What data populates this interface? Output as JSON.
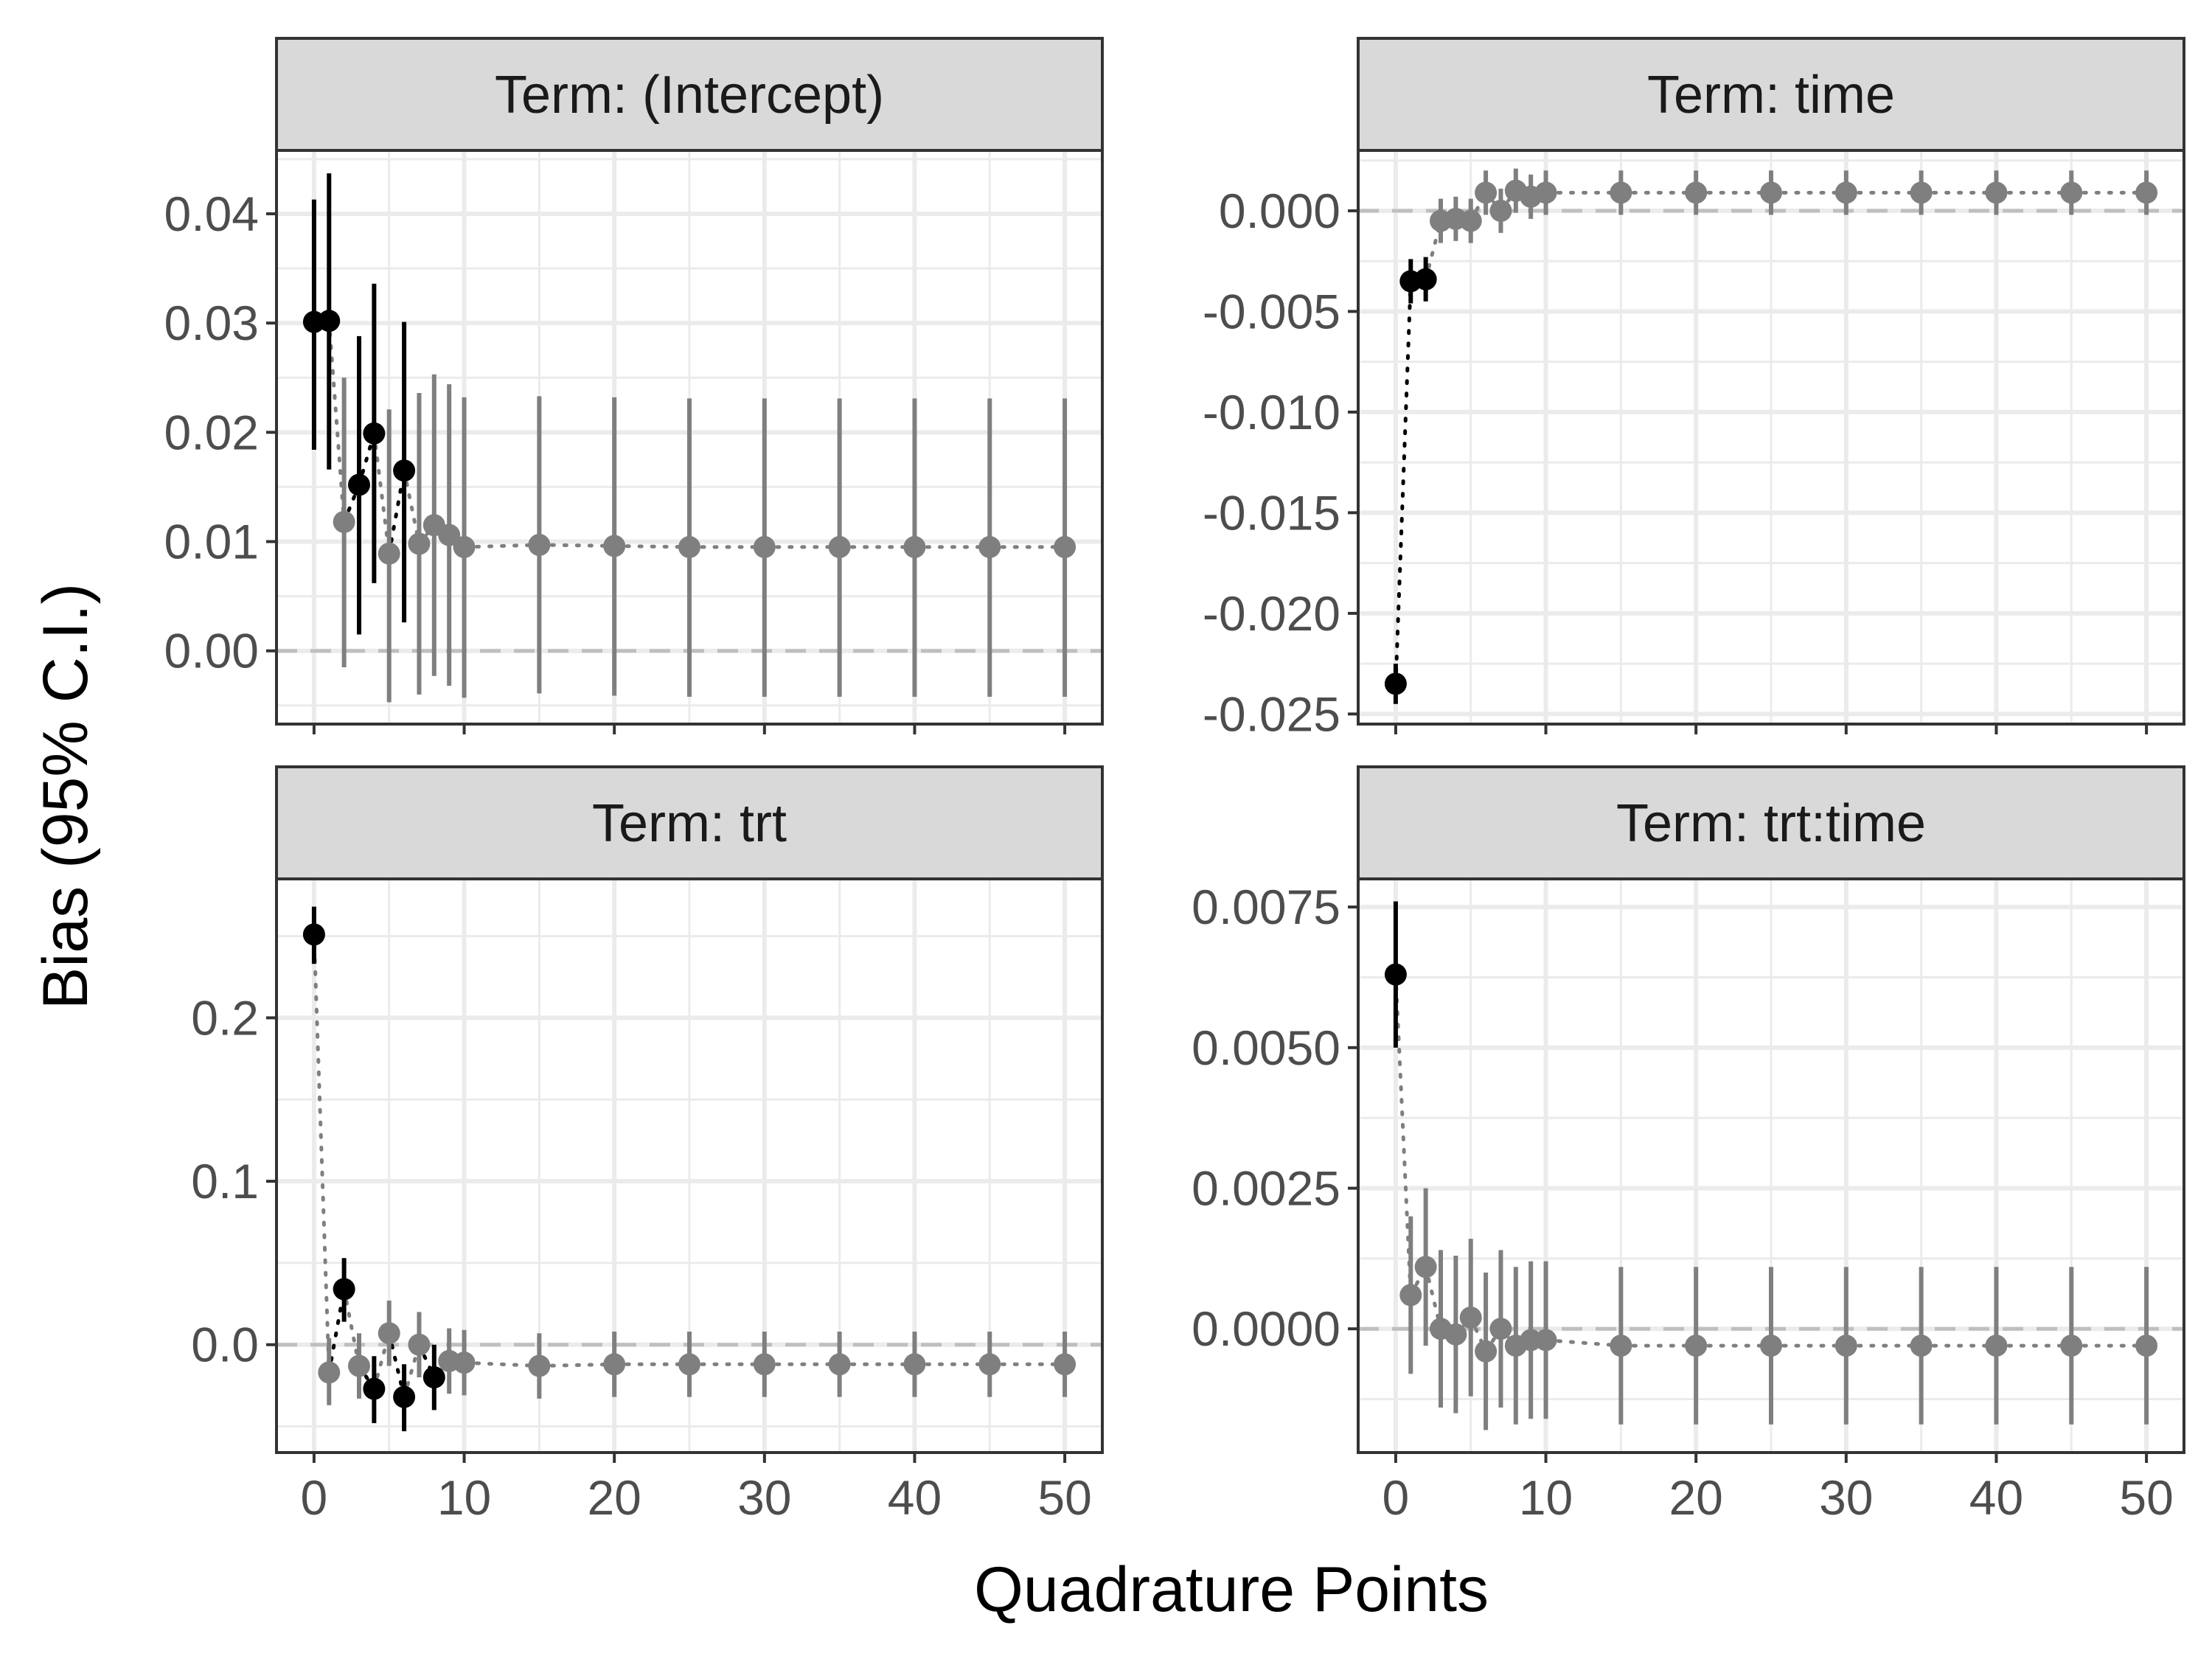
{
  "figure": {
    "xlabel": "Quadrature Points",
    "ylabel": "Bias (95% C.I.)"
  },
  "colors": {
    "significant": "#000000",
    "not_significant": "#7f7f7f",
    "panel_background": "#ffffff",
    "grid": "#ebebeb",
    "strip_background": "#d9d9d9",
    "zero_line": "#bfbfbf"
  },
  "chart_data": [
    {
      "type": "scatter",
      "title": "Term: (Intercept)",
      "x_ticks": [
        "0",
        "10",
        "20",
        "30",
        "40",
        "50"
      ],
      "y_ticks": [
        "0.00",
        "0.01",
        "0.02",
        "0.03",
        "0.04"
      ],
      "y_tick_values": [
        0,
        0.01,
        0.02,
        0.03,
        0.04
      ],
      "xlim": [
        -2.5,
        52.5
      ],
      "ylim": [
        -0.0067,
        0.0458
      ],
      "grid": true,
      "reference_line": 0,
      "points": [
        {
          "x": 0,
          "y": 0.0301,
          "lo": 0.0184,
          "hi": 0.0413,
          "sig": true
        },
        {
          "x": 1,
          "y": 0.0302,
          "lo": 0.0166,
          "hi": 0.0437,
          "sig": true
        },
        {
          "x": 2,
          "y": 0.0118,
          "lo": -0.0015,
          "hi": 0.025,
          "sig": false
        },
        {
          "x": 3,
          "y": 0.0152,
          "lo": 0.0015,
          "hi": 0.0288,
          "sig": true
        },
        {
          "x": 4,
          "y": 0.0199,
          "lo": 0.0062,
          "hi": 0.0336,
          "sig": true
        },
        {
          "x": 5,
          "y": 0.0089,
          "lo": -0.0047,
          "hi": 0.0221,
          "sig": false
        },
        {
          "x": 6,
          "y": 0.0165,
          "lo": 0.0026,
          "hi": 0.0301,
          "sig": true
        },
        {
          "x": 7,
          "y": 0.0098,
          "lo": -0.004,
          "hi": 0.0236,
          "sig": false
        },
        {
          "x": 8,
          "y": 0.0115,
          "lo": -0.0023,
          "hi": 0.0253,
          "sig": false
        },
        {
          "x": 9,
          "y": 0.0106,
          "lo": -0.0032,
          "hi": 0.0244,
          "sig": false
        },
        {
          "x": 10,
          "y": 0.0095,
          "lo": -0.0043,
          "hi": 0.0232,
          "sig": false
        },
        {
          "x": 15,
          "y": 0.0097,
          "lo": -0.0039,
          "hi": 0.0233,
          "sig": false
        },
        {
          "x": 20,
          "y": 0.0096,
          "lo": -0.0041,
          "hi": 0.0232,
          "sig": false
        },
        {
          "x": 25,
          "y": 0.0095,
          "lo": -0.0042,
          "hi": 0.0231,
          "sig": false
        },
        {
          "x": 30,
          "y": 0.0095,
          "lo": -0.0042,
          "hi": 0.0231,
          "sig": false
        },
        {
          "x": 35,
          "y": 0.0095,
          "lo": -0.0042,
          "hi": 0.0231,
          "sig": false
        },
        {
          "x": 40,
          "y": 0.0095,
          "lo": -0.0042,
          "hi": 0.0231,
          "sig": false
        },
        {
          "x": 45,
          "y": 0.0095,
          "lo": -0.0042,
          "hi": 0.0231,
          "sig": false
        },
        {
          "x": 50,
          "y": 0.0095,
          "lo": -0.0042,
          "hi": 0.0231,
          "sig": false
        }
      ]
    },
    {
      "type": "scatter",
      "title": "Term: time",
      "x_ticks": [
        "0",
        "10",
        "20",
        "30",
        "40",
        "50"
      ],
      "y_ticks": [
        "0.000",
        "-0.005",
        "-0.010",
        "-0.015",
        "-0.020",
        "-0.025"
      ],
      "y_tick_values": [
        0,
        -0.005,
        -0.01,
        -0.015,
        -0.02,
        -0.025
      ],
      "xlim": [
        -2.5,
        52.5
      ],
      "ylim": [
        -0.0255,
        0.003
      ],
      "grid": true,
      "reference_line": 0,
      "points": [
        {
          "x": 0,
          "y": -0.0235,
          "lo": -0.0245,
          "hi": -0.0225,
          "sig": true
        },
        {
          "x": 1,
          "y": -0.0035,
          "lo": -0.0046,
          "hi": -0.0024,
          "sig": true
        },
        {
          "x": 2,
          "y": -0.0034,
          "lo": -0.0045,
          "hi": -0.0023,
          "sig": true
        },
        {
          "x": 3,
          "y": -0.0005,
          "lo": -0.0016,
          "hi": 0.0006,
          "sig": false
        },
        {
          "x": 4,
          "y": -0.0004,
          "lo": -0.0015,
          "hi": 0.0007,
          "sig": false
        },
        {
          "x": 5,
          "y": -0.0005,
          "lo": -0.0016,
          "hi": 0.0006,
          "sig": false
        },
        {
          "x": 6,
          "y": 0.0009,
          "lo": -0.0002,
          "hi": 0.002,
          "sig": false
        },
        {
          "x": 7,
          "y": 0.0,
          "lo": -0.0011,
          "hi": 0.0011,
          "sig": false
        },
        {
          "x": 8,
          "y": 0.001,
          "lo": -0.0001,
          "hi": 0.0021,
          "sig": false
        },
        {
          "x": 9,
          "y": 0.0007,
          "lo": -0.0004,
          "hi": 0.0018,
          "sig": false
        },
        {
          "x": 10,
          "y": 0.0009,
          "lo": -0.0002,
          "hi": 0.002,
          "sig": false
        },
        {
          "x": 15,
          "y": 0.0009,
          "lo": -0.0002,
          "hi": 0.002,
          "sig": false
        },
        {
          "x": 20,
          "y": 0.0009,
          "lo": -0.0002,
          "hi": 0.002,
          "sig": false
        },
        {
          "x": 25,
          "y": 0.0009,
          "lo": -0.0002,
          "hi": 0.002,
          "sig": false
        },
        {
          "x": 30,
          "y": 0.0009,
          "lo": -0.0002,
          "hi": 0.002,
          "sig": false
        },
        {
          "x": 35,
          "y": 0.0009,
          "lo": -0.0002,
          "hi": 0.002,
          "sig": false
        },
        {
          "x": 40,
          "y": 0.0009,
          "lo": -0.0002,
          "hi": 0.002,
          "sig": false
        },
        {
          "x": 45,
          "y": 0.0009,
          "lo": -0.0002,
          "hi": 0.002,
          "sig": false
        },
        {
          "x": 50,
          "y": 0.0009,
          "lo": -0.0002,
          "hi": 0.002,
          "sig": false
        }
      ]
    },
    {
      "type": "scatter",
      "title": "Term: trt",
      "x_ticks": [
        "0",
        "10",
        "20",
        "30",
        "40",
        "50"
      ],
      "y_ticks": [
        "0.0",
        "0.1",
        "0.2"
      ],
      "y_tick_values": [
        0,
        0.1,
        0.2
      ],
      "xlim": [
        -2.5,
        52.5
      ],
      "ylim": [
        -0.066,
        0.285
      ],
      "grid": true,
      "reference_line": 0,
      "points": [
        {
          "x": 0,
          "y": 0.251,
          "lo": 0.233,
          "hi": 0.268,
          "sig": true
        },
        {
          "x": 1,
          "y": -0.017,
          "lo": -0.037,
          "hi": 0.004,
          "sig": false
        },
        {
          "x": 2,
          "y": 0.034,
          "lo": 0.014,
          "hi": 0.053,
          "sig": true
        },
        {
          "x": 3,
          "y": -0.013,
          "lo": -0.033,
          "hi": 0.007,
          "sig": false
        },
        {
          "x": 4,
          "y": -0.027,
          "lo": -0.048,
          "hi": -0.007,
          "sig": true
        },
        {
          "x": 5,
          "y": 0.007,
          "lo": -0.013,
          "hi": 0.027,
          "sig": false
        },
        {
          "x": 6,
          "y": -0.032,
          "lo": -0.053,
          "hi": -0.012,
          "sig": true
        },
        {
          "x": 7,
          "y": 0.0,
          "lo": -0.02,
          "hi": 0.02,
          "sig": false
        },
        {
          "x": 8,
          "y": -0.02,
          "lo": -0.04,
          "hi": 0.0,
          "sig": true
        },
        {
          "x": 9,
          "y": -0.01,
          "lo": -0.03,
          "hi": 0.01,
          "sig": false
        },
        {
          "x": 10,
          "y": -0.011,
          "lo": -0.031,
          "hi": 0.009,
          "sig": false
        },
        {
          "x": 15,
          "y": -0.013,
          "lo": -0.033,
          "hi": 0.007,
          "sig": false
        },
        {
          "x": 20,
          "y": -0.012,
          "lo": -0.032,
          "hi": 0.008,
          "sig": false
        },
        {
          "x": 25,
          "y": -0.012,
          "lo": -0.032,
          "hi": 0.008,
          "sig": false
        },
        {
          "x": 30,
          "y": -0.012,
          "lo": -0.032,
          "hi": 0.008,
          "sig": false
        },
        {
          "x": 35,
          "y": -0.012,
          "lo": -0.032,
          "hi": 0.008,
          "sig": false
        },
        {
          "x": 40,
          "y": -0.012,
          "lo": -0.032,
          "hi": 0.008,
          "sig": false
        },
        {
          "x": 45,
          "y": -0.012,
          "lo": -0.032,
          "hi": 0.008,
          "sig": false
        },
        {
          "x": 50,
          "y": -0.012,
          "lo": -0.032,
          "hi": 0.008,
          "sig": false
        }
      ]
    },
    {
      "type": "scatter",
      "title": "Term: trt:time",
      "x_ticks": [
        "0",
        "10",
        "20",
        "30",
        "40",
        "50"
      ],
      "y_ticks": [
        "0.0000",
        "0.0025",
        "0.0050",
        "0.0075"
      ],
      "y_tick_values": [
        0,
        0.0025,
        0.005,
        0.0075
      ],
      "xlim": [
        -2.5,
        52.5
      ],
      "ylim": [
        -0.0022,
        0.008
      ],
      "grid": true,
      "reference_line": 0,
      "points": [
        {
          "x": 0,
          "y": 0.0063,
          "lo": 0.005,
          "hi": 0.0076,
          "sig": true
        },
        {
          "x": 1,
          "y": 0.0006,
          "lo": -0.0008,
          "hi": 0.002,
          "sig": false
        },
        {
          "x": 2,
          "y": 0.0011,
          "lo": -0.0003,
          "hi": 0.0025,
          "sig": false
        },
        {
          "x": 3,
          "y": 0.0,
          "lo": -0.0014,
          "hi": 0.0014,
          "sig": false
        },
        {
          "x": 4,
          "y": -0.0001,
          "lo": -0.0015,
          "hi": 0.0013,
          "sig": false
        },
        {
          "x": 5,
          "y": 0.0002,
          "lo": -0.0012,
          "hi": 0.0016,
          "sig": false
        },
        {
          "x": 6,
          "y": -0.0004,
          "lo": -0.0018,
          "hi": 0.001,
          "sig": false
        },
        {
          "x": 7,
          "y": 0.0,
          "lo": -0.0014,
          "hi": 0.0014,
          "sig": false
        },
        {
          "x": 8,
          "y": -0.0003,
          "lo": -0.0017,
          "hi": 0.0011,
          "sig": false
        },
        {
          "x": 9,
          "y": -0.0002,
          "lo": -0.0016,
          "hi": 0.0012,
          "sig": false
        },
        {
          "x": 10,
          "y": -0.0002,
          "lo": -0.0016,
          "hi": 0.0012,
          "sig": false
        },
        {
          "x": 15,
          "y": -0.0003,
          "lo": -0.0017,
          "hi": 0.0011,
          "sig": false
        },
        {
          "x": 20,
          "y": -0.0003,
          "lo": -0.0017,
          "hi": 0.0011,
          "sig": false
        },
        {
          "x": 25,
          "y": -0.0003,
          "lo": -0.0017,
          "hi": 0.0011,
          "sig": false
        },
        {
          "x": 30,
          "y": -0.0003,
          "lo": -0.0017,
          "hi": 0.0011,
          "sig": false
        },
        {
          "x": 35,
          "y": -0.0003,
          "lo": -0.0017,
          "hi": 0.0011,
          "sig": false
        },
        {
          "x": 40,
          "y": -0.0003,
          "lo": -0.0017,
          "hi": 0.0011,
          "sig": false
        },
        {
          "x": 45,
          "y": -0.0003,
          "lo": -0.0017,
          "hi": 0.0011,
          "sig": false
        },
        {
          "x": 50,
          "y": -0.0003,
          "lo": -0.0017,
          "hi": 0.0011,
          "sig": false
        }
      ]
    }
  ]
}
